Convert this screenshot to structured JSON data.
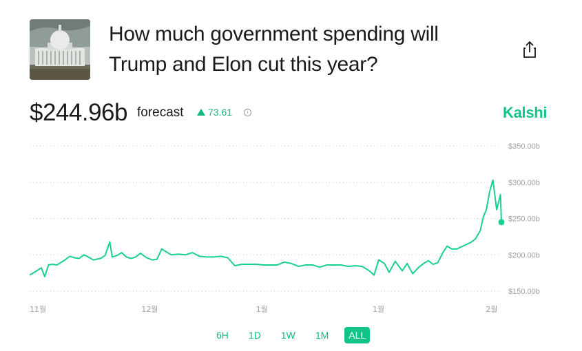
{
  "market": {
    "title": "How much government spending will Trump and Elon cut this year?",
    "price": "$244.96b",
    "forecast_label": "forecast",
    "change": "73.61",
    "brand": "Kalshi"
  },
  "colors": {
    "accent": "#13c48a",
    "line": "#19d08f",
    "grid": "#c8c8c8",
    "axis_text": "#a0a0a0"
  },
  "icons": {
    "share": "share-icon",
    "info": "info-icon",
    "up": "triangle-up-icon"
  },
  "ranges": [
    {
      "label": "6H",
      "active": false
    },
    {
      "label": "1D",
      "active": false
    },
    {
      "label": "1W",
      "active": false
    },
    {
      "label": "1M",
      "active": false
    },
    {
      "label": "ALL",
      "active": true
    }
  ],
  "chart_data": {
    "type": "line",
    "title": "",
    "xlabel": "",
    "ylabel": "",
    "ylim": [
      150,
      350
    ],
    "grid": true,
    "y_ticks": [
      "$150.00b",
      "$200.00b",
      "$250.00b",
      "$300.00b",
      "$350.00b"
    ],
    "x_ticks": [
      {
        "label": "11월",
        "x": 0
      },
      {
        "label": "12월",
        "x": 0.237
      },
      {
        "label": "1월",
        "x": 0.48
      },
      {
        "label": "1월",
        "x": 0.727
      },
      {
        "label": "2월",
        "x": 0.967
      }
    ],
    "series": [
      {
        "x": [
          0.0,
          0.015,
          0.025,
          0.032,
          0.04,
          0.047,
          0.058,
          0.075,
          0.085,
          0.095,
          0.105,
          0.115,
          0.122,
          0.135,
          0.15,
          0.16,
          0.17,
          0.175,
          0.185,
          0.195,
          0.205,
          0.215,
          0.225,
          0.235,
          0.248,
          0.26,
          0.27,
          0.28,
          0.29,
          0.3,
          0.315,
          0.33,
          0.345,
          0.36,
          0.375,
          0.39,
          0.405,
          0.42,
          0.435,
          0.45,
          0.465,
          0.48,
          0.495,
          0.51,
          0.525,
          0.54,
          0.555,
          0.57,
          0.585,
          0.6,
          0.615,
          0.63,
          0.645,
          0.66,
          0.675,
          0.69,
          0.705,
          0.72,
          0.73,
          0.74,
          0.752,
          0.762,
          0.775,
          0.79,
          0.8,
          0.812,
          0.825,
          0.835,
          0.845,
          0.855,
          0.865,
          0.875,
          0.885,
          0.895,
          0.905,
          0.915,
          0.925,
          0.935,
          0.945,
          0.955,
          0.962,
          0.968,
          0.975,
          0.982,
          0.99,
          0.998,
          1.0
        ],
        "values": [
          172,
          178,
          182,
          170,
          186,
          187,
          186,
          193,
          198,
          196,
          195,
          200,
          198,
          193,
          195,
          199,
          218,
          197,
          199,
          203,
          197,
          195,
          197,
          202,
          196,
          193,
          194,
          208,
          204,
          200,
          201,
          200,
          203,
          198,
          197,
          197,
          198,
          196,
          185,
          187,
          187,
          187,
          186,
          186,
          186,
          190,
          188,
          184,
          186,
          186,
          183,
          186,
          186,
          186,
          184,
          185,
          184,
          178,
          172,
          193,
          188,
          176,
          191,
          178,
          188,
          174,
          183,
          188,
          192,
          187,
          189,
          202,
          212,
          208,
          208,
          211,
          214,
          217,
          222,
          233,
          253,
          262,
          287,
          303,
          262,
          283,
          245
        ]
      }
    ]
  }
}
